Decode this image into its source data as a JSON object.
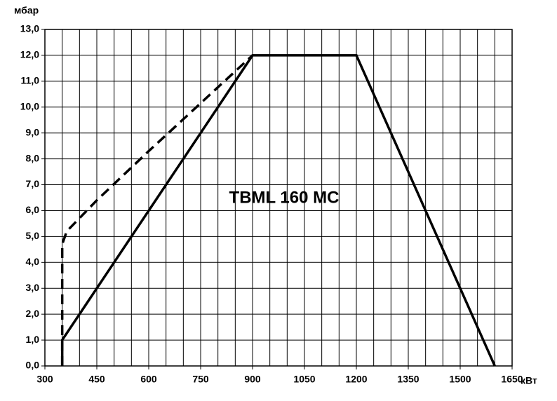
{
  "chart_data": {
    "type": "line",
    "annotation": "TBML 160 MC",
    "ylabel": "мбар",
    "xlabel": "кВт",
    "xlim": [
      300,
      1650
    ],
    "xticks": [
      300,
      450,
      600,
      750,
      900,
      1050,
      1200,
      1350,
      1500,
      1650
    ],
    "grid_x_step": 50,
    "ylim": [
      0,
      13
    ],
    "yticks": [
      {
        "value": 0,
        "label": "0,0"
      },
      {
        "value": 1,
        "label": "1,0"
      },
      {
        "value": 2,
        "label": "2,0"
      },
      {
        "value": 3,
        "label": "3,0"
      },
      {
        "value": 4,
        "label": "4,0"
      },
      {
        "value": 5,
        "label": "5,0"
      },
      {
        "value": 6,
        "label": "6,0"
      },
      {
        "value": 7,
        "label": "7,0"
      },
      {
        "value": 8,
        "label": "8,0"
      },
      {
        "value": 9,
        "label": "9,0"
      },
      {
        "value": 10,
        "label": "10,0"
      },
      {
        "value": 11,
        "label": "11,0"
      },
      {
        "value": 12,
        "label": "12,0"
      },
      {
        "value": 13,
        "label": "13,0"
      }
    ],
    "grid": true,
    "series": [
      {
        "color": "#000000",
        "dashed": false,
        "x": [
          350,
          350,
          900,
          1200,
          1600
        ],
        "values": [
          0,
          1,
          12,
          12,
          0
        ]
      },
      {
        "color": "#000000",
        "dashed": true,
        "x": [
          350,
          350,
          363,
          450,
          600,
          900
        ],
        "values": [
          0,
          4.7,
          5.2,
          6.4,
          8.3,
          12
        ]
      }
    ]
  }
}
